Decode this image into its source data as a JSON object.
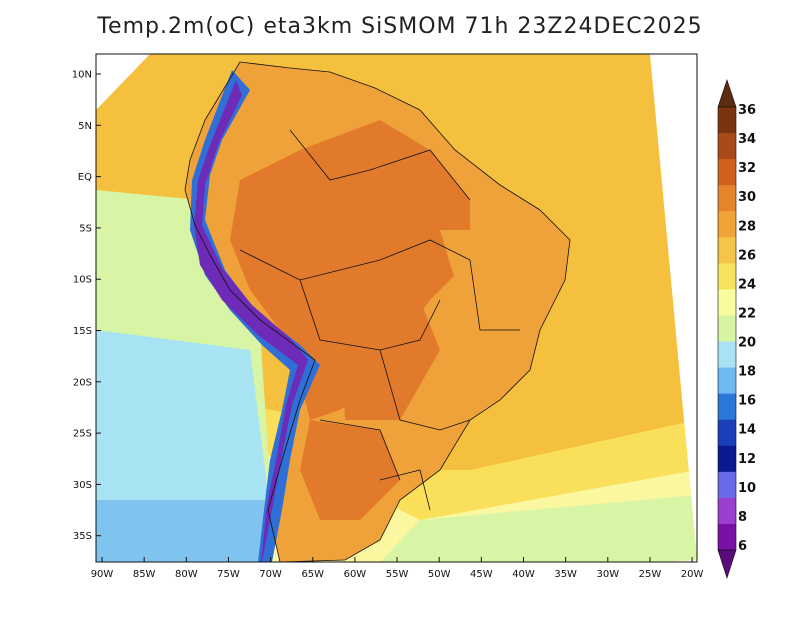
{
  "title": "Temp.2m(oC) eta3km SiSMOM 71h 23Z24DEC2025",
  "colors": {
    "ocean_tropical": "#F6C03F",
    "ocean_mid": "#FADF5A",
    "ocean_light": "#FBF7A0",
    "ocean_green": "#D8F5A6",
    "ocean_cyan": "#A7E3F2",
    "ocean_cold": "#7FC4EF",
    "land_hot": "#E27A2C",
    "land_warm": "#F0A23A",
    "andes_cold": "#6E2BB8",
    "andes_blue": "#2F6FD6",
    "border": "#111111"
  },
  "map": {
    "lat_labels": [
      "10N",
      "5N",
      "EQ",
      "5S",
      "10S",
      "15S",
      "20S",
      "25S",
      "30S",
      "35S"
    ],
    "lon_labels": [
      "90W",
      "85W",
      "80W",
      "75W",
      "70W",
      "65W",
      "60W",
      "55W",
      "50W",
      "45W",
      "40W",
      "35W",
      "30W",
      "25W",
      "20W"
    ]
  },
  "colorbar": {
    "labels": [
      "36",
      "34",
      "32",
      "30",
      "28",
      "26",
      "24",
      "22",
      "20",
      "18",
      "16",
      "14",
      "12",
      "10",
      "8",
      "6"
    ],
    "colors_top_to_bottom": [
      "#5E2A12",
      "#7A3410",
      "#A84B18",
      "#D0621E",
      "#E6842C",
      "#F0A336",
      "#F5C448",
      "#F7E25C",
      "#F9FB9E",
      "#D6F5A2",
      "#A8E2F4",
      "#6FBAF0",
      "#2C78D8",
      "#1A3FB8",
      "#0A1990",
      "#6A6AE8",
      "#9A3FD0",
      "#7A10A8",
      "#5A0A7A"
    ]
  }
}
